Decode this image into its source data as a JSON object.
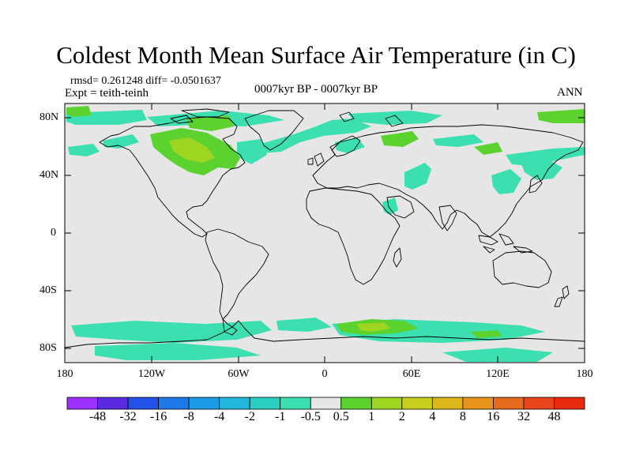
{
  "title": "Coldest Month Mean Surface Air Temperature (in C)",
  "stats": "rmsd= 0.261248 diff= -0.0501637",
  "experiment": "Expt = teith-teinh",
  "period": "0007kyr BP - 0007kyr BP",
  "season": "ANN",
  "lat_ticks": [
    "80N",
    "40N",
    "0",
    "40S",
    "80S"
  ],
  "lon_ticks": [
    "180",
    "120W",
    "60W",
    "0",
    "60E",
    "120E",
    "180"
  ],
  "colorbar": {
    "labels": [
      "-48",
      "-32",
      "-16",
      "-8",
      "-4",
      "-2",
      "-1",
      "-0.5",
      "0.5",
      "1",
      "2",
      "4",
      "8",
      "16",
      "32",
      "48"
    ],
    "colors": [
      "#9B30FF",
      "#5A2BE0",
      "#2352E8",
      "#1E78E8",
      "#1E9BE8",
      "#22B8DC",
      "#2BCFC2",
      "#3CDFB0",
      "#E6E6E6",
      "#5CD22F",
      "#9ED520",
      "#C8CE1E",
      "#DDB71A",
      "#E6941B",
      "#E66A1B",
      "#E8461A",
      "#E82A10"
    ]
  },
  "map_colors": {
    "background": "#E6E6E6",
    "cool": "#3CDFB0",
    "warm": "#5CD22F",
    "warm_strong": "#9ED520"
  }
}
